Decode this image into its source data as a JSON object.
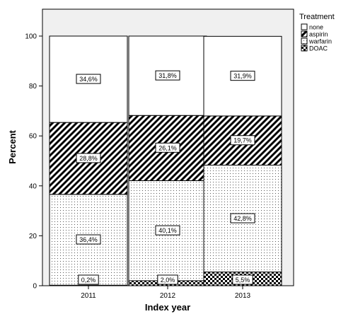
{
  "chart_data": {
    "type": "bar",
    "stacked": true,
    "xlabel": "Index year",
    "ylabel": "Percent",
    "ylim": [
      0,
      100
    ],
    "yticks": [
      0,
      20,
      40,
      60,
      80,
      100
    ],
    "categories": [
      "2011",
      "2012",
      "2013"
    ],
    "legend": {
      "title": "Treatment",
      "placement": "right"
    },
    "series": [
      {
        "name": "DOAC",
        "pattern": "checker",
        "values": [
          0.2,
          2.0,
          5.5
        ],
        "labels": [
          "0,2%",
          "2,0%",
          "5,5%"
        ]
      },
      {
        "name": "warfarin",
        "pattern": "dots",
        "values": [
          36.4,
          40.1,
          42.8
        ],
        "labels": [
          "36,4%",
          "40,1%",
          "42,8%"
        ]
      },
      {
        "name": "aspirin",
        "pattern": "diagonal",
        "values": [
          28.8,
          26.1,
          19.7
        ],
        "labels": [
          "28,8%",
          "26,1%",
          "19,7%"
        ]
      },
      {
        "name": "none",
        "pattern": "solid-white",
        "values": [
          34.6,
          31.8,
          31.9
        ],
        "labels": [
          "34,6%",
          "31,8%",
          "31,9%"
        ]
      }
    ],
    "legend_order": [
      "none",
      "aspirin",
      "warfarin",
      "DOAC"
    ],
    "colors": {
      "plot_background": "#f0f0f0",
      "bar_fill": "#ffffff",
      "ink": "#000000"
    }
  }
}
